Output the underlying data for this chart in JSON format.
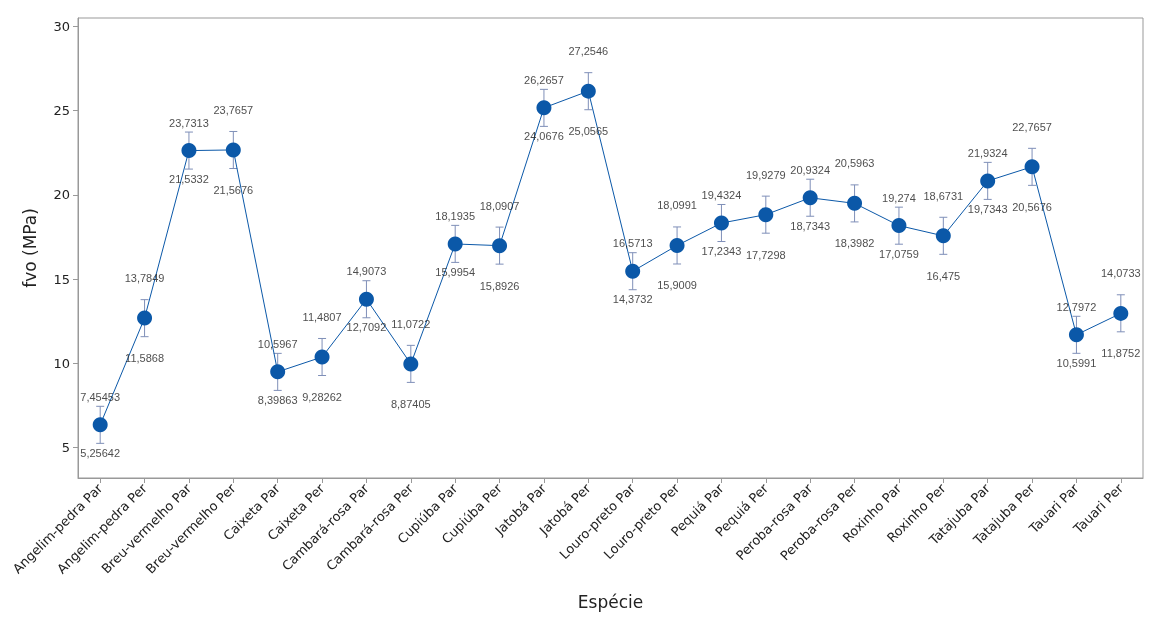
{
  "chart_data": {
    "type": "line",
    "xlabel": "Espécie",
    "ylabel": "fvo (MPa)",
    "categories": [
      "Angelim-pedra Par",
      "Angelim-pedra Per",
      "Breu-vermelho Par",
      "Breu-vermelho Per",
      "Caixeta Par",
      "Caixeta Per",
      "Cambará-rosa Par",
      "Cambará-rosa Per",
      "Cupiúba Par",
      "Cupiúba Per",
      "Jatobá Par",
      "Jatobá Per",
      "Louro-preto Par",
      "Louro-preto Per",
      "Pequiá Par",
      "Pequiá Per",
      "Peroba-rosa Par",
      "Peroba-rosa Per",
      "Roxinho Par",
      "Roxinho Per",
      "Tatajuba Par",
      "Tatajuba Per",
      "Tauari Par",
      "Tauari Per"
    ],
    "series": [
      {
        "color": "#0b58a8",
        "values": [
          6.36,
          12.69,
          22.63,
          22.67,
          9.5,
          10.38,
          13.81,
          9.97,
          17.09,
          16.99,
          25.17,
          26.16,
          15.47,
          17.0,
          18.33,
          18.83,
          19.83,
          19.5,
          18.18,
          17.57,
          20.83,
          21.67,
          11.7,
          12.97
        ],
        "errors": [
          [
            5.25642,
            7.45453
          ],
          [
            11.5868,
            13.7849
          ],
          [
            21.5332,
            23.7313
          ],
          [
            21.5676,
            23.7657
          ],
          [
            8.39863,
            10.5967
          ],
          [
            9.28262,
            11.4807
          ],
          [
            12.7092,
            14.9073
          ],
          [
            8.87405,
            11.0722
          ],
          [
            15.9954,
            18.1935
          ],
          [
            15.8926,
            18.0907
          ],
          [
            24.0676,
            26.2657
          ],
          [
            25.0565,
            27.2546
          ],
          [
            14.3732,
            16.5713
          ],
          [
            15.9009,
            18.0991
          ],
          [
            17.2343,
            19.4324
          ],
          [
            17.7298,
            19.9279
          ],
          [
            18.7343,
            20.9324
          ],
          [
            18.3982,
            20.5963
          ],
          [
            17.0759,
            19.274
          ],
          [
            16.475,
            18.6731
          ],
          [
            19.7343,
            21.9324
          ],
          [
            20.5676,
            22.7657
          ],
          [
            10.5991,
            12.7972
          ],
          [
            11.8752,
            14.0733
          ]
        ]
      }
    ],
    "value_labels": [
      [
        "7,45453",
        "13,7849",
        "23,7313",
        "23,7657",
        "10,5967",
        "11,4807",
        "14,9073",
        "11,0722",
        "18,1935",
        "18,0907",
        "26,2657",
        "27,2546",
        "16,5713",
        "18,0991",
        "19,4324",
        "19,9279",
        "20,9324",
        "20,5963",
        "19,274",
        "18,6731",
        "21,9324",
        "22,7657",
        "12,7972",
        "14,0733"
      ],
      [
        "5,25642",
        "11,5868",
        "21,5332",
        "21,5676",
        "8,39863",
        "9,28262",
        "12,7092",
        "8,87405",
        "15,9954",
        "15,8926",
        "24,0676",
        "25,0565",
        "14,3732",
        "15,9009",
        "17,2343",
        "17,7298",
        "18,7343",
        "18,3982",
        "17,0759",
        "16,475",
        "19,7343",
        "20,5676",
        "10,5991",
        "11,8752"
      ]
    ],
    "ylim": [
      3.2,
      30.5
    ],
    "yticks": [
      5,
      10,
      15,
      20,
      25,
      30
    ],
    "marker": "circle",
    "line_style": "solid",
    "grid": false
  }
}
